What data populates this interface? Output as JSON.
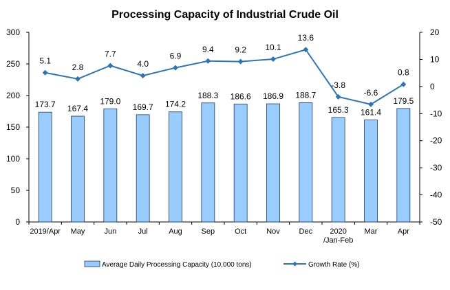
{
  "chart_data": {
    "type": "bar",
    "title": "Processing Capacity of Industrial Crude Oil",
    "categories": [
      "2019/Apr",
      "May",
      "Jun",
      "Jul",
      "Aug",
      "Sep",
      "Oct",
      "Nov",
      "Dec",
      "2020/Jan-Feb",
      "Mar",
      "Apr"
    ],
    "category_label_lines": [
      [
        "2019/Apr"
      ],
      [
        "May"
      ],
      [
        "Jun"
      ],
      [
        "Jul"
      ],
      [
        "Aug"
      ],
      [
        "Sep"
      ],
      [
        "Oct"
      ],
      [
        "Nov"
      ],
      [
        "Dec"
      ],
      [
        "2020",
        "/Jan-Feb"
      ],
      [
        "Mar"
      ],
      [
        "Apr"
      ]
    ],
    "series": [
      {
        "name": "Average Daily Processing Capacity (10,000 tons)",
        "type": "bar",
        "axis": "left",
        "color": "#99CCFF",
        "values": [
          173.7,
          167.4,
          179.0,
          169.7,
          174.2,
          188.3,
          186.6,
          186.9,
          188.7,
          165.3,
          161.4,
          179.5
        ],
        "labels": [
          "173.7",
          "167.4",
          "179.0",
          "169.7",
          "174.2",
          "188.3",
          "186.6",
          "186.9",
          "188.7",
          "165.3",
          "161.4",
          "179.5"
        ]
      },
      {
        "name": "Growth Rate (%)",
        "type": "line",
        "axis": "right",
        "color": "#2E75B6",
        "values": [
          5.1,
          2.8,
          7.7,
          4.0,
          6.9,
          9.4,
          9.2,
          10.1,
          13.6,
          -3.8,
          -6.6,
          0.8
        ],
        "labels": [
          "5.1",
          "2.8",
          "7.7",
          "4.0",
          "6.9",
          "9.4",
          "9.2",
          "10.1",
          "13.6",
          "-3.8",
          "-6.6",
          "0.8"
        ]
      }
    ],
    "y_left": {
      "min": 0,
      "max": 300,
      "ticks": [
        0,
        50,
        100,
        150,
        200,
        250,
        300
      ]
    },
    "y_right": {
      "min": -50,
      "max": 20,
      "ticks": [
        -50,
        -40,
        -30,
        -20,
        -10,
        0,
        10,
        20
      ]
    },
    "grid": false,
    "legend_position": "bottom"
  }
}
